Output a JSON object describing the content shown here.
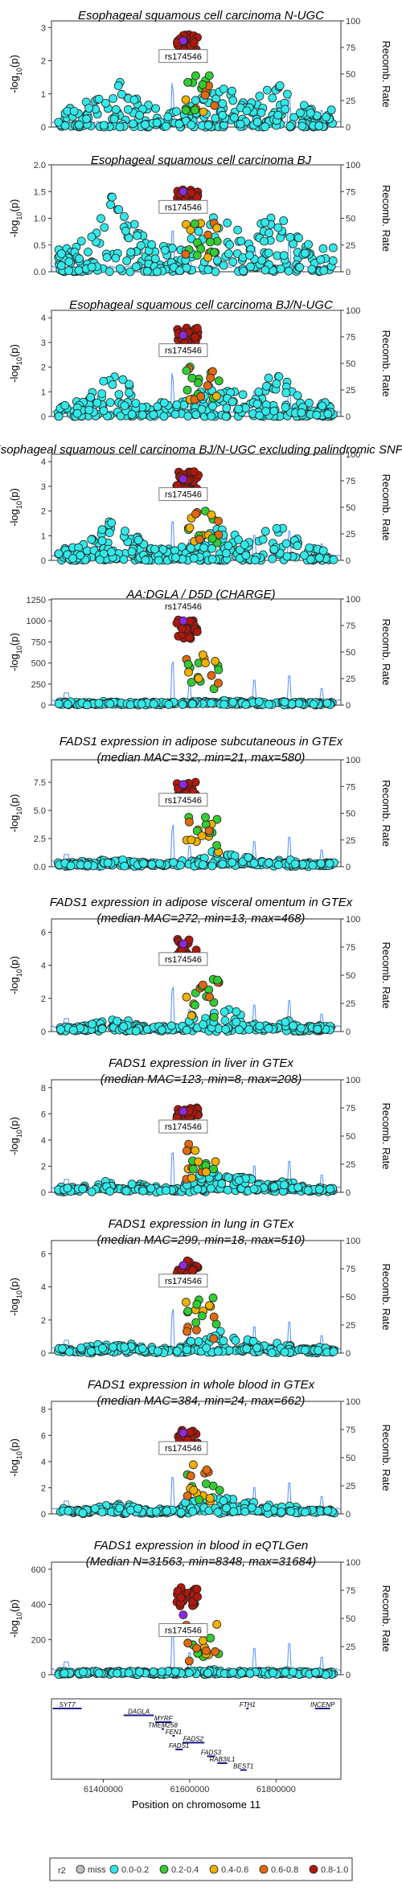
{
  "chart_data": {
    "type": "scatter",
    "lead_snp": "rs174546",
    "x_range": [
      61280000,
      61950000
    ],
    "x_ticks": [
      61400000,
      61600000,
      61800000
    ],
    "xlabel": "Position on chromosome 11",
    "ylabel_left": "-log10(p)",
    "ylabel_right": "Recomb. Rate",
    "recomb_ticks": [
      0,
      25,
      50,
      75,
      100
    ],
    "r2_legend": {
      "title": "r2",
      "items": [
        {
          "label": "miss",
          "color": "#c0c0c0"
        },
        {
          "label": "0.0-0.2",
          "color": "#33e8e8"
        },
        {
          "label": "0.2-0.4",
          "color": "#33cc33"
        },
        {
          "label": "0.4-0.6",
          "color": "#f0b000"
        },
        {
          "label": "0.6-0.8",
          "color": "#e06a10"
        },
        {
          "label": "0.8-1.0",
          "color": "#b0180c"
        }
      ],
      "lead_color": "#8a2be2"
    },
    "panels": [
      {
        "title_lines": [
          "Esophageal squamous cell carcinoma N-UGC"
        ],
        "ylim": [
          0,
          3.2
        ],
        "yticks": [
          0,
          1,
          2,
          3
        ],
        "peak": 2.8,
        "bg": 2.2,
        "lead": 2.6,
        "shape": "flat"
      },
      {
        "title_lines": [
          "Esophageal squamous cell carcinoma BJ"
        ],
        "ylim": [
          0,
          2.0
        ],
        "yticks": [
          0,
          0.5,
          1.0,
          1.5,
          2.0
        ],
        "yticklabels": [
          "0.0",
          "0.5",
          "1.0",
          "1.5",
          "2.0"
        ],
        "peak": 1.55,
        "bg": 1.9,
        "lead": 1.5,
        "shape": "flat"
      },
      {
        "title_lines": [
          "Esophageal squamous cell carcinoma BJ/N-UGC"
        ],
        "ylim": [
          0,
          4.3
        ],
        "yticks": [
          0,
          1,
          2,
          3,
          4
        ],
        "peak": 3.6,
        "bg": 2.3,
        "lead": 3.3,
        "shape": "flat"
      },
      {
        "title_lines": [
          "Esophageal squamous cell carcinoma BJ/N-UGC excluding palindromic SNPs"
        ],
        "ylim": [
          0,
          4.3
        ],
        "yticks": [
          0,
          1,
          2,
          3,
          4
        ],
        "peak": 3.6,
        "bg": 2.2,
        "lead": 3.3,
        "shape": "flat"
      },
      {
        "title_lines": [
          "AA:DGLA / D5D (CHARGE)"
        ],
        "ylim": [
          0,
          1260
        ],
        "yticks": [
          0,
          250,
          500,
          750,
          1000,
          1250
        ],
        "peak": 1010,
        "bg": 40,
        "lead": 1000,
        "shape": "tower",
        "label_above": true
      },
      {
        "title_lines": [
          "FADS1 expression in adipose subcutaneous in GTEx",
          "(median MAC=332, min=21, max=580)"
        ],
        "ylim": [
          0,
          9.5
        ],
        "yticks": [
          0,
          2.5,
          5.0,
          7.5
        ],
        "yticklabels": [
          "0.0",
          "2.5",
          "5.0",
          "7.5"
        ],
        "peak": 7.6,
        "bg": 2.0,
        "lead": 7.3,
        "shape": "tower"
      },
      {
        "title_lines": [
          "FADS1 expression in adipose visceral omentum in GTEx",
          "(median MAC=272, min=13, max=468)"
        ],
        "ylim": [
          0,
          6.8
        ],
        "yticks": [
          0,
          2,
          4,
          6
        ],
        "peak": 5.6,
        "bg": 2.4,
        "lead": 5.3,
        "shape": "tower"
      },
      {
        "title_lines": [
          "FADS1 expression in liver in GTEx",
          "(median MAC=123, min=8, max=208)"
        ],
        "ylim": [
          0,
          8.6
        ],
        "yticks": [
          0,
          2,
          4,
          6,
          8
        ],
        "peak": 6.5,
        "bg": 2.8,
        "lead": 6.2,
        "shape": "tower"
      },
      {
        "title_lines": [
          "FADS1 expression in lung in GTEx",
          "(median MAC=299, min=18, max=510)"
        ],
        "ylim": [
          0,
          6.8
        ],
        "yticks": [
          0,
          2,
          4,
          6
        ],
        "peak": 5.6,
        "bg": 2.0,
        "lead": 5.3,
        "shape": "tower"
      },
      {
        "title_lines": [
          "FADS1 expression in whole blood in GTEx",
          "(median MAC=384, min=24, max=662)"
        ],
        "ylim": [
          0,
          8.6
        ],
        "yticks": [
          0,
          2,
          4,
          6,
          8
        ],
        "peak": 6.4,
        "bg": 2.3,
        "lead": 6.2,
        "shape": "tower"
      },
      {
        "title_lines": [
          "FADS1 expression in blood in eQTLGen",
          "(Median N=31563, min=8348, max=31684)"
        ],
        "ylim": [
          0,
          640
        ],
        "yticks": [
          0,
          200,
          400,
          600
        ],
        "peak": 500,
        "bg": 20,
        "lead": 340,
        "shape": "tower"
      }
    ],
    "genes": [
      {
        "name": "SYT7",
        "start": 61283000,
        "end": 61350000,
        "row": 0
      },
      {
        "name": "FTH1",
        "start": 61731000,
        "end": 61735000,
        "row": 0
      },
      {
        "name": "INCENP",
        "start": 61890000,
        "end": 61925000,
        "row": 0
      },
      {
        "name": "DAGLA",
        "start": 61447000,
        "end": 61517000,
        "row": 1
      },
      {
        "name": "MYRF",
        "start": 61520000,
        "end": 61558000,
        "row": 2
      },
      {
        "name": "TMEM258",
        "start": 61535000,
        "end": 61538000,
        "row": 3
      },
      {
        "name": "FEN1",
        "start": 61560000,
        "end": 61565000,
        "row": 4
      },
      {
        "name": "FADS2",
        "start": 61583000,
        "end": 61634000,
        "row": 5
      },
      {
        "name": "FADS1",
        "start": 61567000,
        "end": 61584000,
        "row": 6
      },
      {
        "name": "FADS3",
        "start": 61640000,
        "end": 61659000,
        "row": 7
      },
      {
        "name": "RAB3IL1",
        "start": 61664000,
        "end": 61687000,
        "row": 8
      },
      {
        "name": "BEST1",
        "start": 61717000,
        "end": 61732000,
        "row": 9
      }
    ]
  }
}
